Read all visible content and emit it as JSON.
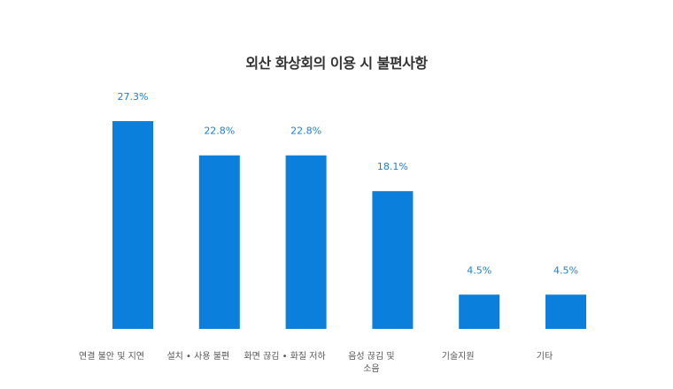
{
  "chart_data": {
    "type": "bar",
    "title": "외산 화상회의 이용 시 불편사항",
    "categories": [
      "연결 불안 및 지연",
      "설치 • 사용 불편",
      "화면 끊김 •  화질 저하",
      "음성 끊김 및 소음",
      "기술지원",
      "기타"
    ],
    "values": [
      27.3,
      22.8,
      22.8,
      18.1,
      4.5,
      4.5
    ],
    "value_labels": [
      "27.3%",
      "22.8%",
      "22.8%",
      "18.1%",
      "4.5%",
      "4.5%"
    ],
    "unit": "%",
    "ylim": [
      0,
      27.3
    ],
    "grid": false,
    "legend": "none",
    "bar_color": "#0a7fdc",
    "label_color": "#1a7fd4"
  }
}
